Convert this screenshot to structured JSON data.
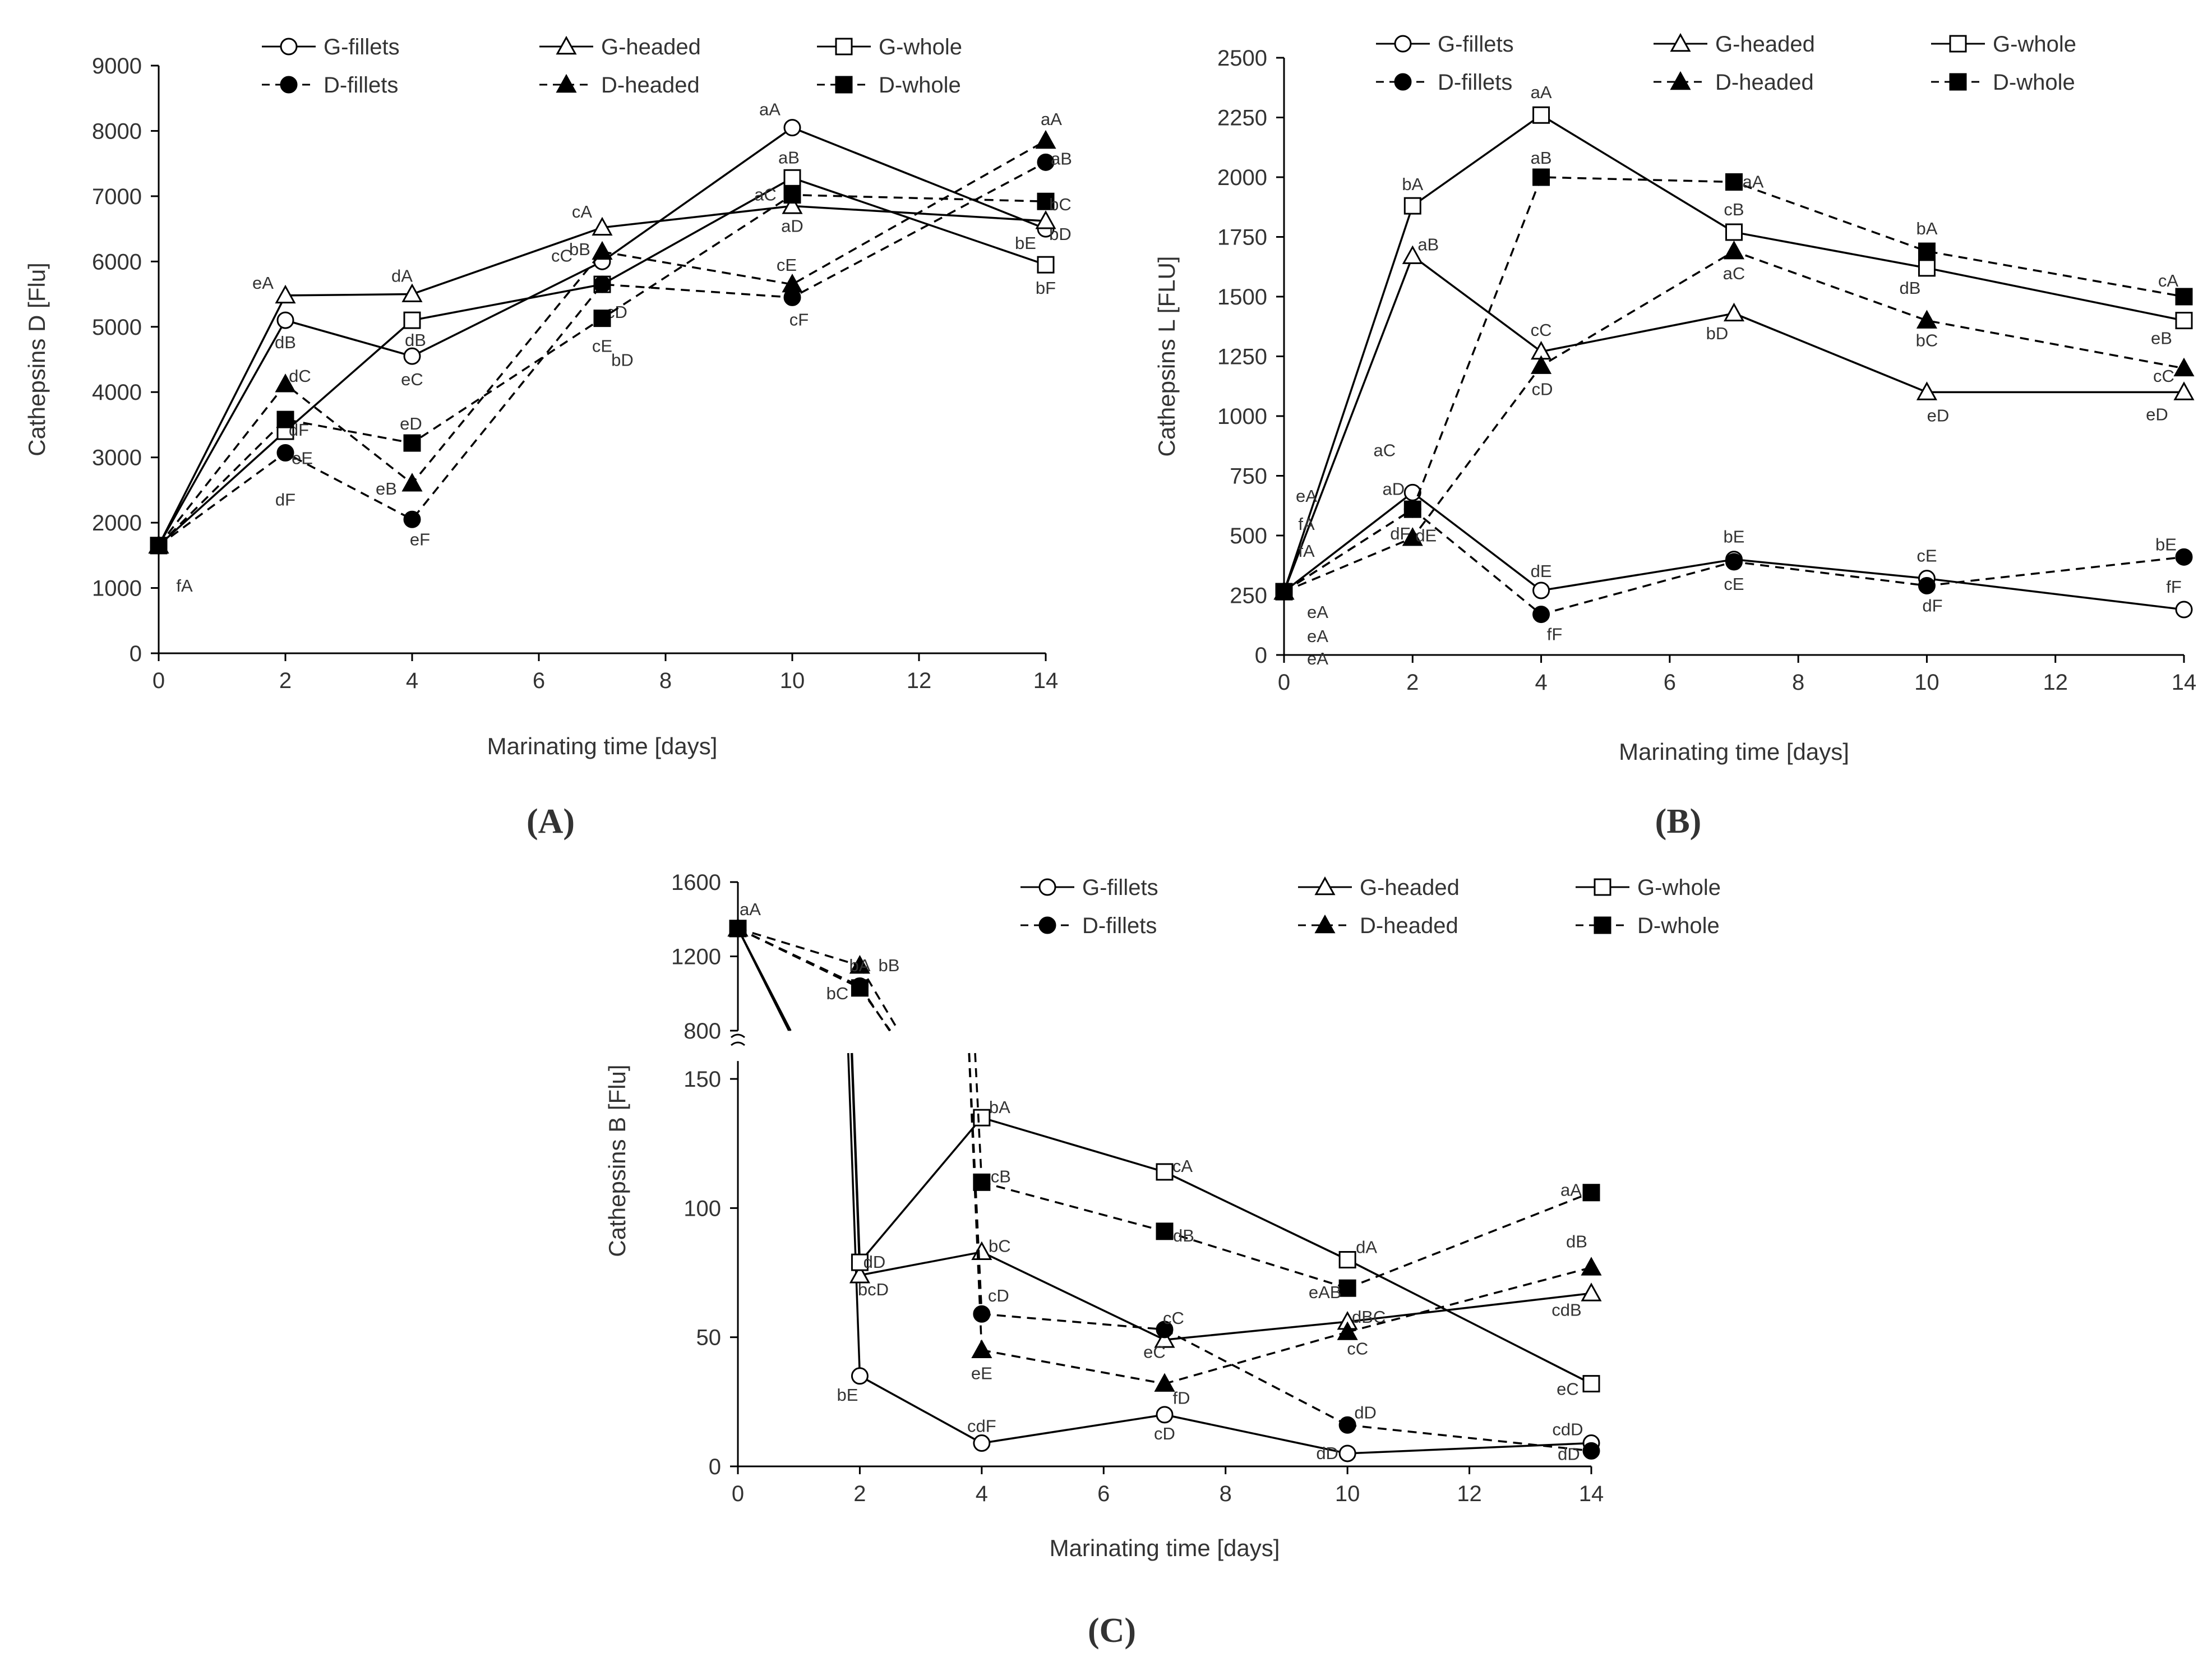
{
  "chart_data": [
    {
      "type": "line",
      "panel_label": "A",
      "panel_letter": "A",
      "ylabel": "Cathepsins D [Flu]",
      "xlabel": "Marinating time [days]",
      "xlim": [
        0,
        14
      ],
      "ylim": [
        0,
        9000
      ],
      "xticks": [
        0,
        2,
        4,
        6,
        8,
        10,
        12,
        14
      ],
      "yticks": [
        0,
        1000,
        2000,
        3000,
        4000,
        5000,
        6000,
        7000,
        8000,
        9000
      ],
      "legend_position": "top",
      "series": [
        {
          "name": "G-fillets",
          "marker": "circle-open",
          "dash": "solid",
          "x": [
            0,
            2,
            4,
            7,
            10,
            14
          ],
          "y": [
            1650,
            5100,
            4550,
            6000,
            8050,
            6500
          ],
          "labels": [
            "",
            "dB",
            "eC",
            "cC",
            "aA",
            "bD"
          ]
        },
        {
          "name": "G-headed",
          "marker": "triangle-open",
          "dash": "solid",
          "x": [
            0,
            2,
            4,
            7,
            10,
            14
          ],
          "y": [
            1650,
            5480,
            5500,
            6520,
            6850,
            6620
          ],
          "labels": [
            "",
            "eA",
            "dA",
            "cA",
            "aD",
            ""
          ]
        },
        {
          "name": "G-whole",
          "marker": "square-open",
          "dash": "solid",
          "x": [
            0,
            2,
            4,
            7,
            10,
            14
          ],
          "y": [
            1650,
            3400,
            5100,
            5650,
            7280,
            5950
          ],
          "labels": [
            "",
            "dF",
            "dB",
            "cD",
            "aB",
            "bF"
          ]
        },
        {
          "name": "D-fillets",
          "marker": "circle-filled",
          "dash": "dashed",
          "x": [
            0,
            2,
            4,
            7,
            10,
            14
          ],
          "y": [
            1650,
            3070,
            2050,
            5650,
            5450,
            7520
          ],
          "labels": [
            "",
            "eE",
            "eF",
            "",
            "cF",
            "aB"
          ]
        },
        {
          "name": "D-headed",
          "marker": "triangle-filled",
          "dash": "dashed",
          "x": [
            0,
            2,
            4,
            7,
            10,
            14
          ],
          "y": [
            1650,
            4120,
            2600,
            6150,
            5650,
            7850
          ],
          "labels": [
            "",
            "dC",
            "eB",
            "bB",
            "cE",
            "aA"
          ]
        },
        {
          "name": "D-whole",
          "marker": "square-filled",
          "dash": "dashed",
          "x": [
            0,
            2,
            4,
            7,
            10,
            14
          ],
          "y": [
            1650,
            3580,
            3220,
            5130,
            7020,
            6920
          ],
          "labels": [
            "",
            "",
            "eD",
            "cE",
            "aC",
            "bC"
          ]
        }
      ],
      "annotations": [
        {
          "x": 0,
          "y": 1650,
          "text": "fA"
        },
        {
          "x": 2,
          "y": 3070,
          "text": "dF"
        },
        {
          "x": 7,
          "y": 5130,
          "text": "bD"
        },
        {
          "x": 14,
          "y": 6500,
          "text": "bE"
        }
      ]
    },
    {
      "type": "line",
      "panel_label": "B",
      "panel_letter": "B",
      "ylabel": "Cathepsins L [FLU]",
      "xlabel": "Marinating time [days]",
      "xlim": [
        0,
        14
      ],
      "ylim": [
        0,
        2500
      ],
      "xticks": [
        0,
        2,
        4,
        6,
        8,
        10,
        12,
        14
      ],
      "yticks": [
        0,
        250,
        500,
        750,
        1000,
        1250,
        1500,
        1750,
        2000,
        2250,
        2500
      ],
      "legend_position": "top",
      "series": [
        {
          "name": "G-fillets",
          "marker": "circle-open",
          "dash": "solid",
          "x": [
            0,
            2,
            4,
            7,
            10,
            14
          ],
          "y": [
            265,
            680,
            270,
            400,
            320,
            190
          ],
          "labels": [
            "",
            "aD",
            "dE",
            "bE",
            "cE",
            "fF"
          ]
        },
        {
          "name": "G-headed",
          "marker": "triangle-open",
          "dash": "solid",
          "x": [
            0,
            2,
            4,
            7,
            10,
            14
          ],
          "y": [
            265,
            1670,
            1270,
            1430,
            1100,
            1100
          ],
          "labels": [
            "",
            "aB",
            "cC",
            "bD",
            "eD",
            "eD"
          ]
        },
        {
          "name": "G-whole",
          "marker": "square-open",
          "dash": "solid",
          "x": [
            0,
            2,
            4,
            7,
            10,
            14
          ],
          "y": [
            265,
            1880,
            2260,
            1770,
            1620,
            1400
          ],
          "labels": [
            "",
            "bA",
            "aA",
            "cB",
            "dB",
            "eB"
          ]
        },
        {
          "name": "D-fillets",
          "marker": "circle-filled",
          "dash": "dashed",
          "x": [
            0,
            2,
            4,
            7,
            10,
            14
          ],
          "y": [
            265,
            610,
            170,
            390,
            290,
            410
          ],
          "labels": [
            "",
            "dF",
            "fF",
            "cE",
            "dF",
            "bE"
          ]
        },
        {
          "name": "D-headed",
          "marker": "triangle-filled",
          "dash": "dashed",
          "x": [
            0,
            2,
            4,
            7,
            10,
            14
          ],
          "y": [
            265,
            490,
            1210,
            1690,
            1400,
            1200
          ],
          "labels": [
            "",
            "dE",
            "cD",
            "aC",
            "bC",
            "cC"
          ]
        },
        {
          "name": "D-whole",
          "marker": "square-filled",
          "dash": "dashed",
          "x": [
            0,
            2,
            4,
            7,
            10,
            14
          ],
          "y": [
            265,
            610,
            2000,
            1980,
            1690,
            1500
          ],
          "labels": [
            "",
            "",
            "aB",
            "aA",
            "bA",
            "cA"
          ]
        }
      ],
      "annotations": [
        {
          "x": 0,
          "y": 265,
          "text": "eA"
        },
        {
          "x": 0,
          "y": 265,
          "text": "fA"
        },
        {
          "x": 0,
          "y": 265,
          "text": "fA"
        },
        {
          "x": 0,
          "y": 265,
          "text": "eA"
        },
        {
          "x": 0,
          "y": 265,
          "text": "eA"
        },
        {
          "x": 0,
          "y": 265,
          "text": "eA"
        },
        {
          "x": 2,
          "y": 680,
          "text": "aC"
        }
      ]
    },
    {
      "type": "line",
      "panel_label": "C",
      "panel_letter": "C",
      "ylabel": "Cathepsins B [Flu]",
      "xlabel": "Marinating time [days]",
      "xlim": [
        0,
        14
      ],
      "ylim": [
        0,
        1600
      ],
      "broken_axis": {
        "lower": [
          0,
          160
        ],
        "upper": [
          800,
          1600
        ]
      },
      "xticks": [
        0,
        2,
        4,
        6,
        8,
        10,
        12,
        14
      ],
      "yticks_lower": [
        0,
        50,
        100,
        150
      ],
      "yticks_upper": [
        800,
        1200,
        1600
      ],
      "legend_position": "top-right",
      "series": [
        {
          "name": "G-fillets",
          "marker": "circle-open",
          "dash": "solid",
          "x": [
            0,
            2,
            4,
            7,
            10,
            14
          ],
          "y": [
            1350,
            35,
            9,
            20,
            5,
            9
          ],
          "labels": [
            "",
            "bE",
            "cdF",
            "cD",
            "dD",
            "cdD"
          ]
        },
        {
          "name": "G-headed",
          "marker": "triangle-open",
          "dash": "solid",
          "x": [
            0,
            2,
            4,
            7,
            10,
            14
          ],
          "y": [
            1350,
            74,
            83,
            49,
            56,
            67
          ],
          "labels": [
            "",
            "bcD",
            "bC",
            "eC",
            "dBC",
            "cdB"
          ]
        },
        {
          "name": "G-whole",
          "marker": "square-open",
          "dash": "solid",
          "x": [
            0,
            2,
            4,
            7,
            10,
            14
          ],
          "y": [
            1350,
            79,
            135,
            114,
            80,
            32
          ],
          "labels": [
            "",
            "dD",
            "bA",
            "cA",
            "dA",
            "eC"
          ]
        },
        {
          "name": "D-fillets",
          "marker": "circle-filled",
          "dash": "dashed",
          "x": [
            0,
            2,
            4,
            7,
            10,
            14
          ],
          "y": [
            1350,
            1040,
            59,
            53,
            16,
            6
          ],
          "labels": [
            "",
            "",
            "cD",
            "cC",
            "dD",
            "dD"
          ]
        },
        {
          "name": "D-headed",
          "marker": "triangle-filled",
          "dash": "dashed",
          "x": [
            0,
            2,
            4,
            7,
            10,
            14
          ],
          "y": [
            1350,
            1150,
            45,
            32,
            52,
            77
          ],
          "labels": [
            "aA",
            "bA",
            "eE",
            "fD",
            "cC",
            "dB"
          ]
        },
        {
          "name": "D-whole",
          "marker": "square-filled",
          "dash": "dashed",
          "x": [
            0,
            2,
            4,
            7,
            10,
            14
          ],
          "y": [
            1350,
            1030,
            110,
            91,
            69,
            106
          ],
          "labels": [
            "",
            "bC",
            "cB",
            "dB",
            "eAB",
            "aA"
          ]
        }
      ],
      "annotations": [
        {
          "x": 2,
          "y": 1030,
          "text": "bB"
        }
      ]
    }
  ]
}
